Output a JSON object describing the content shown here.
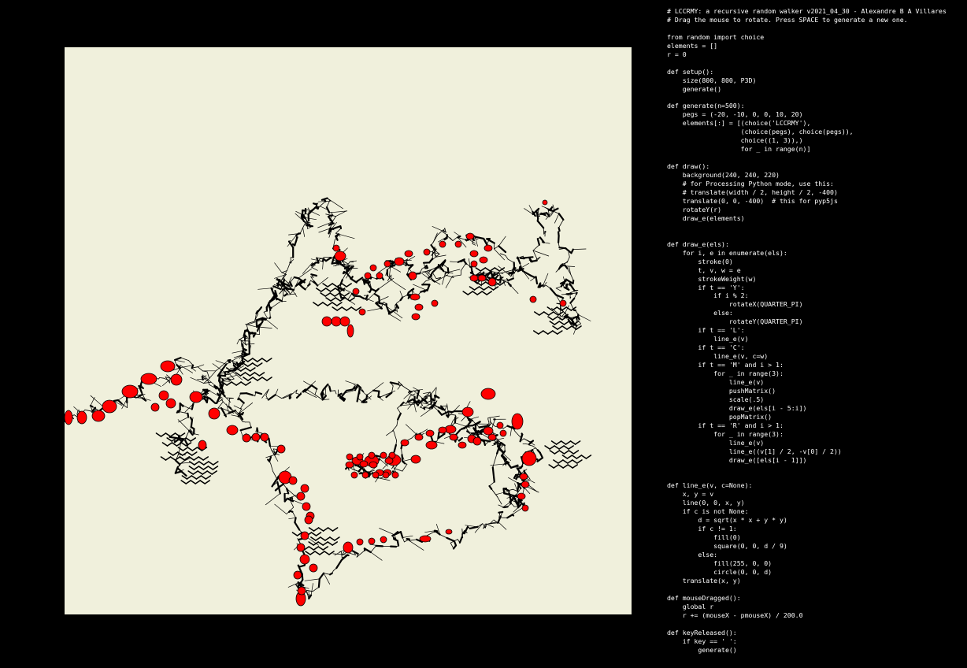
{
  "colors": {
    "page_background": "#000000",
    "canvas_background": "#f0f0dc",
    "stroke": "#000000",
    "circle_fill": "#ff0000",
    "code_text": "#ffffff"
  },
  "code": {
    "lines": [
      "# LCCRMY: a recursive random walker v2021_04_30 - Alexandre B A Villares",
      "# Drag the mouse to rotate. Press SPACE to generate a new one.",
      "",
      "from random import choice",
      "elements = []",
      "r = 0",
      "",
      "def setup():",
      "    size(800, 800, P3D)",
      "    generate()",
      "",
      "def generate(n=500):",
      "    pegs = (-20, -10, 0, 0, 10, 20)",
      "    elements[:] = [(choice('LCCRMY'),",
      "                   (choice(pegs), choice(pegs)),",
      "                   choice((1, 3)),)",
      "                   for _ in range(n)]",
      "",
      "def draw():",
      "    background(240, 240, 220)",
      "    # for Processing Python mode, use this:",
      "    # translate(width / 2, height / 2, -400)",
      "    translate(0, 0, -400)  # this for pyp5js",
      "    rotateY(r)",
      "    draw_e(elements)",
      "",
      "",
      "def draw_e(els):",
      "    for i, e in enumerate(els):",
      "        stroke(0)",
      "        t, v, w = e",
      "        strokeWeight(w)",
      "        if t == 'Y':",
      "            if i % 2:",
      "                rotateX(QUARTER_PI)",
      "            else:",
      "                rotateY(QUARTER_PI)",
      "        if t == 'L':",
      "            line_e(v)",
      "        if t == 'C':",
      "            line_e(v, c=w)",
      "        if t == 'M' and i > 1:",
      "            for _ in range(3):",
      "                line_e(v)",
      "                pushMatrix()",
      "                scale(.5)",
      "                draw_e(els[i - 5:i])",
      "                popMatrix()",
      "        if t == 'R' and i > 1:",
      "            for _ in range(3):",
      "                line_e(v)",
      "                line_e((v[1] / 2, -v[0] / 2))",
      "                draw_e([els[i - 1]])",
      "",
      "",
      "def line_e(v, c=None):",
      "    x, y = v",
      "    line(0, 0, x, y)",
      "    if c is not None:",
      "        d = sqrt(x * x + y * y)",
      "        if c != 1:",
      "            fill(0)",
      "            square(0, 0, d / 9)",
      "        else:",
      "            fill(255, 0, 0)",
      "            circle(0, 0, d)",
      "    translate(x, y)",
      "",
      "def mouseDragged():",
      "    global r",
      "    r += (mouseX - pmouseX) / 200.0",
      "",
      "def keyReleased():",
      "    if key == ' ':",
      "        generate()"
    ]
  }
}
